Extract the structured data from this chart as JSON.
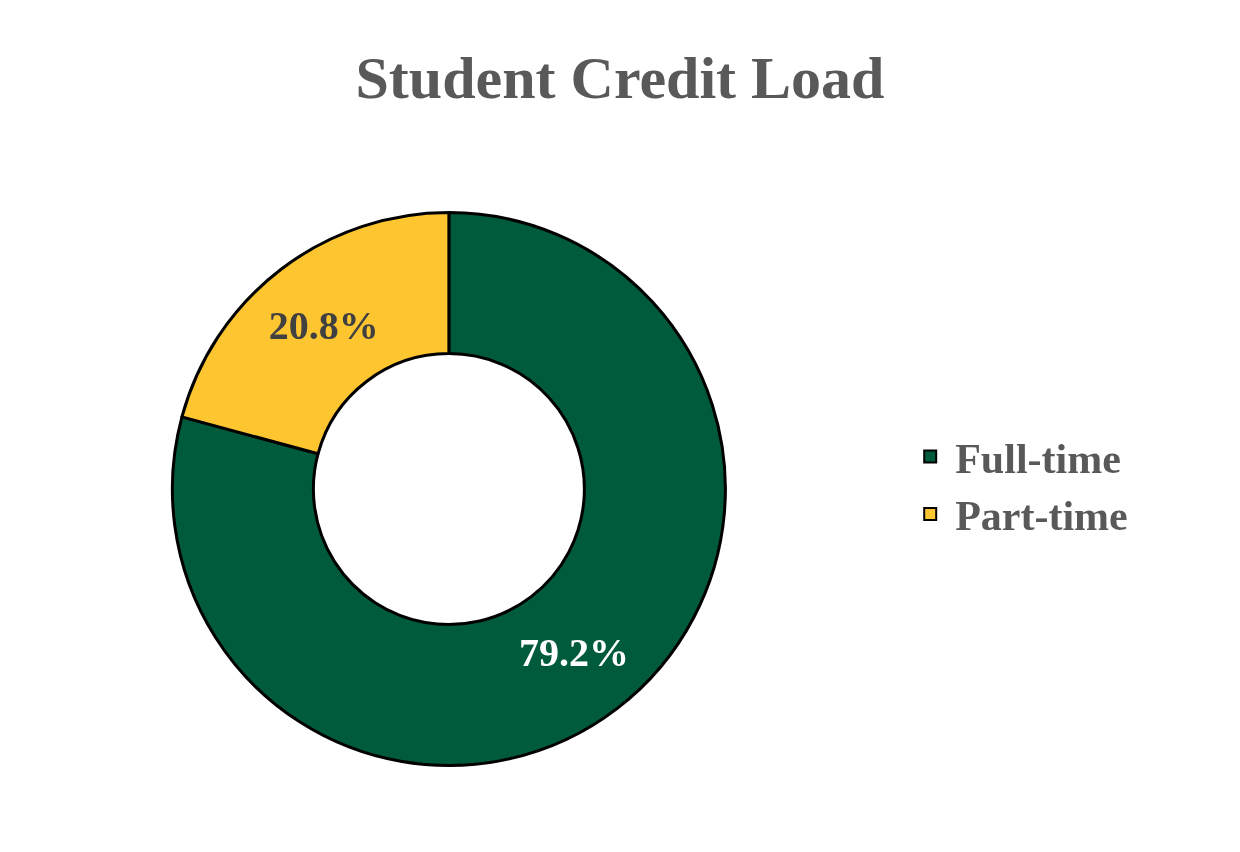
{
  "chart_data": {
    "type": "donut",
    "title": "Student Credit Load",
    "categories": [
      "Full-time",
      "Part-time"
    ],
    "values": [
      79.2,
      20.8
    ],
    "colors": [
      "#005a3c",
      "#fdc52f"
    ],
    "value_labels": [
      "79.2%",
      "20.8%"
    ],
    "legend": "right"
  }
}
